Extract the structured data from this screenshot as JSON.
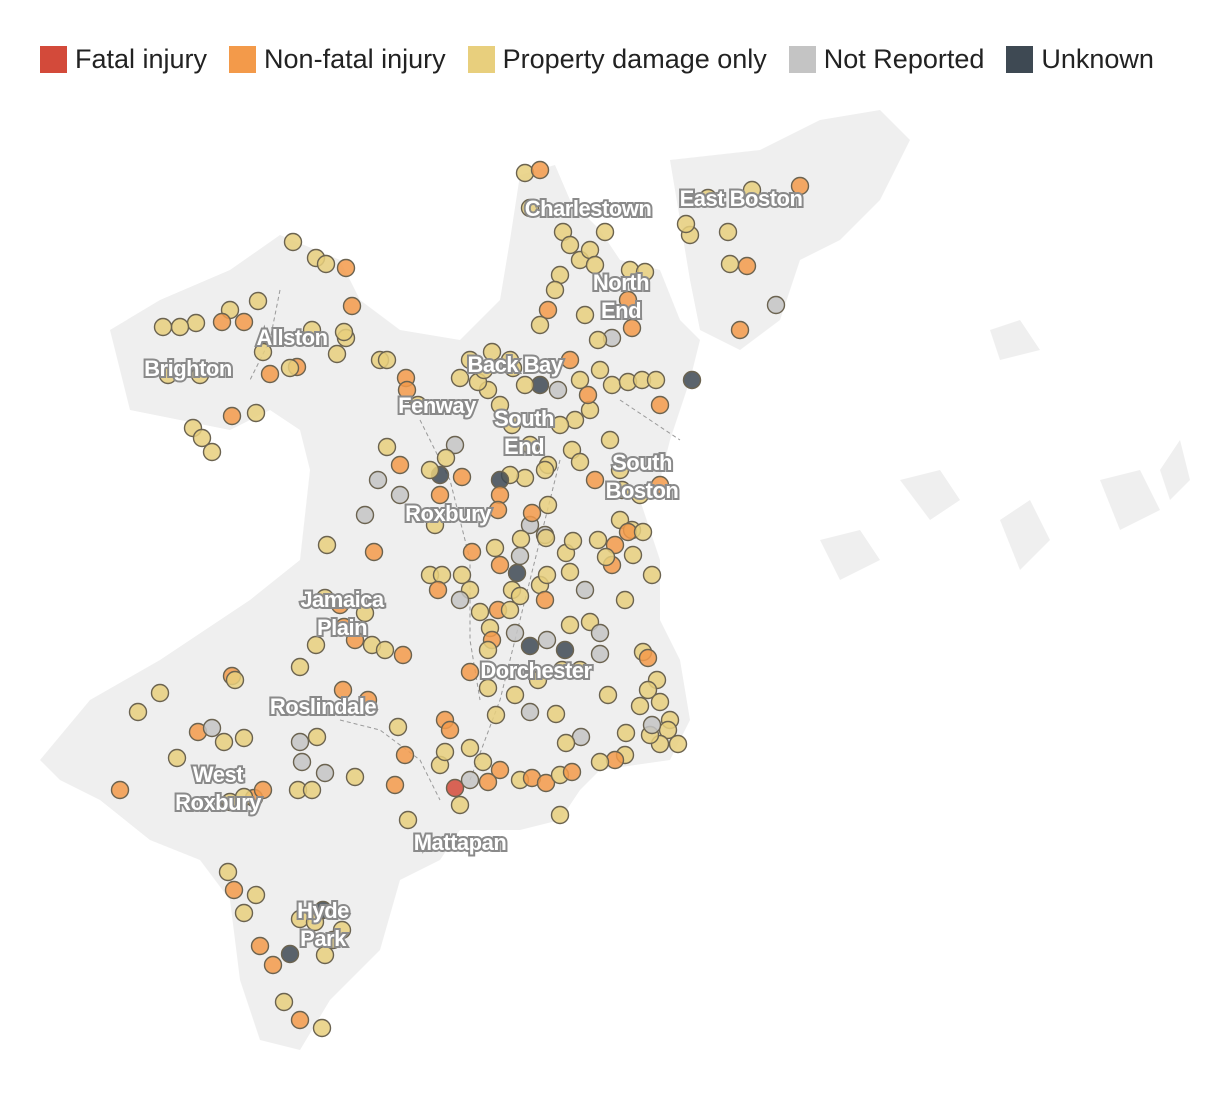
{
  "legend": [
    {
      "label": "Fatal injury",
      "color": "#d34a3a"
    },
    {
      "label": "Non-fatal injury",
      "color": "#f39a4a"
    },
    {
      "label": "Property damage only",
      "color": "#e8cf7d"
    },
    {
      "label": "Not Reported",
      "color": "#c4c4c4"
    },
    {
      "label": "Unknown",
      "color": "#3e4953"
    }
  ],
  "neighborhoods": [
    {
      "id": "charlestown",
      "lines": [
        "Charlestown"
      ]
    },
    {
      "id": "east-boston",
      "lines": [
        "East Boston"
      ]
    },
    {
      "id": "north-end",
      "lines": [
        "North",
        "End"
      ]
    },
    {
      "id": "allston",
      "lines": [
        "Allston"
      ]
    },
    {
      "id": "brighton",
      "lines": [
        "Brighton"
      ]
    },
    {
      "id": "back-bay",
      "lines": [
        "Back Bay"
      ]
    },
    {
      "id": "fenway",
      "lines": [
        "Fenway"
      ]
    },
    {
      "id": "south-end",
      "lines": [
        "South",
        "End"
      ]
    },
    {
      "id": "south-boston",
      "lines": [
        "South",
        "Boston"
      ]
    },
    {
      "id": "roxbury",
      "lines": [
        "Roxbury"
      ]
    },
    {
      "id": "jamaica-plain",
      "lines": [
        "Jamaica",
        "Plain"
      ]
    },
    {
      "id": "dorchester",
      "lines": [
        "Dorchester"
      ]
    },
    {
      "id": "roslindale",
      "lines": [
        "Roslindale"
      ]
    },
    {
      "id": "west-roxbury",
      "lines": [
        "West",
        "Roxbury"
      ]
    },
    {
      "id": "mattapan",
      "lines": [
        "Mattapan"
      ]
    },
    {
      "id": "hyde-park",
      "lines": [
        "Hyde",
        "Park"
      ]
    }
  ],
  "map_colors": {
    "land": "#efefef",
    "road": "#9a9a9a"
  },
  "crash_types": [
    "Property damage only",
    "Non-fatal injury",
    "Not Reported",
    "Unknown",
    "Fatal injury"
  ]
}
